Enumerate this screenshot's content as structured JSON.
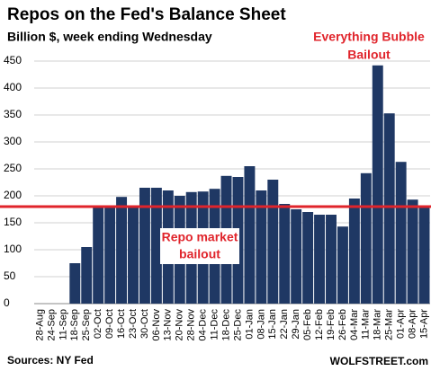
{
  "chart_data": {
    "type": "bar",
    "title": "Repos on the Fed's Balance Sheet",
    "subtitle": "Billion $, week ending Wednesday",
    "source": "Sources: NY Fed",
    "brand": "WOLFSTREET.com",
    "annotations": [
      {
        "lines": [
          "Everything Bubble",
          "Bailout"
        ],
        "color": "#e0242b"
      },
      {
        "lines": [
          "Repo market",
          "bailout"
        ],
        "color": "#e0242b"
      }
    ],
    "reference_line": {
      "value": 180,
      "color": "#e0242b"
    },
    "categories": [
      "28-Aug",
      "24-Sep",
      "11-Sep",
      "18-Sep",
      "25-Sep",
      "02-Oct",
      "09-Oct",
      "16-Oct",
      "23-Oct",
      "30-Oct",
      "06-Nov",
      "13-Nov",
      "20-Nov",
      "28-Nov",
      "04-Dec",
      "11-Dec",
      "18-Dec",
      "25-Dec",
      "01-Jan",
      "08-Jan",
      "15-Jan",
      "22-Jan",
      "29-Jan",
      "05-Feb",
      "12-Feb",
      "19-Feb",
      "26-Feb",
      "04-Mar",
      "11-Mar",
      "18-Mar",
      "25-Mar",
      "01-Apr",
      "08-Apr",
      "15-Apr"
    ],
    "values": [
      null,
      null,
      null,
      75,
      105,
      180,
      180,
      198,
      180,
      215,
      215,
      210,
      200,
      207,
      208,
      213,
      237,
      235,
      255,
      210,
      230,
      185,
      175,
      170,
      165,
      165,
      143,
      195,
      242,
      442,
      353,
      263,
      193,
      182
    ],
    "color": "#1f3864",
    "ylim": [
      0,
      450
    ],
    "yticks": [
      0,
      50,
      100,
      150,
      200,
      250,
      300,
      350,
      400,
      450
    ],
    "grid": true
  }
}
